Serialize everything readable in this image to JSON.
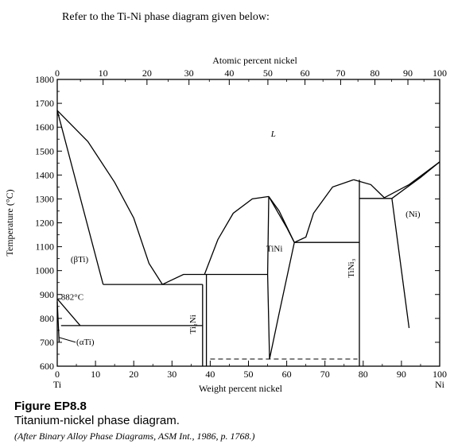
{
  "header": {
    "prompt": "Refer to the Ti-Ni phase diagram given below:"
  },
  "figure": {
    "title": "Figure EP8.8",
    "subtitle": "Titanium-nickel phase diagram.",
    "source": "(After Binary Alloy Phase Diagrams, ASM Int., 1986, p. 1768.)"
  },
  "chart_data": {
    "type": "line",
    "title": "",
    "xlabel": "Weight percent nickel",
    "x2label": "Atomic percent nickel",
    "ylabel": "Temperature (°C)",
    "xlim": [
      0,
      100
    ],
    "ylim": [
      600,
      1800
    ],
    "x_ticks": [
      "0",
      "10",
      "20",
      "30",
      "40",
      "50",
      "60",
      "70",
      "80",
      "90",
      "100"
    ],
    "x2_ticks": [
      "0",
      "10",
      "20",
      "30",
      "40",
      "50",
      "60",
      "70",
      "80",
      "90",
      "100"
    ],
    "y_ticks": [
      "600",
      "700",
      "800",
      "900",
      "1000",
      "1100",
      "1200",
      "1300",
      "1400",
      "1500",
      "1600",
      "1700",
      "1800"
    ],
    "x_end_labels": {
      "left": "Ti",
      "right": "Ni"
    },
    "annotations": {
      "liquid": "L",
      "beta_ti": "(βTi)",
      "alpha_ti": "(αTi)",
      "transformation": "882°C",
      "ti2ni": "Ti₂Ni",
      "tini": "TiNi",
      "tini3": "TiNi₃",
      "ni": "(Ni)"
    },
    "lines": [
      {
        "points": [
          [
            0,
            1670
          ],
          [
            12,
            942
          ]
        ]
      },
      {
        "points": [
          [
            0,
            1670
          ],
          [
            8,
            1540
          ],
          [
            15,
            1370
          ],
          [
            20,
            1220
          ],
          [
            24,
            1030
          ],
          [
            27.5,
            942
          ]
        ]
      },
      {
        "points": [
          [
            12,
            942
          ],
          [
            38,
            942
          ]
        ]
      },
      {
        "points": [
          [
            27.5,
            942
          ],
          [
            33,
            984
          ],
          [
            38.5,
            984
          ]
        ]
      },
      {
        "points": [
          [
            38.5,
            984
          ],
          [
            42,
            1130
          ],
          [
            46,
            1240
          ],
          [
            51,
            1300
          ],
          [
            55.3,
            1310
          ]
        ]
      },
      {
        "points": [
          [
            38.5,
            984
          ],
          [
            55,
            984
          ]
        ]
      },
      {
        "points": [
          [
            55.3,
            1310
          ],
          [
            55,
            984
          ],
          [
            55.5,
            630
          ]
        ]
      },
      {
        "points": [
          [
            55.3,
            1310
          ],
          [
            58,
            1250
          ],
          [
            62,
            1118
          ]
        ]
      },
      {
        "points": [
          [
            55.3,
            1310
          ],
          [
            60,
            1180
          ],
          [
            62,
            1118
          ]
        ]
      },
      {
        "points": [
          [
            55.5,
            630
          ],
          [
            58,
            820
          ],
          [
            62,
            1118
          ]
        ]
      },
      {
        "points": [
          [
            62,
            1118
          ],
          [
            79,
            1118
          ]
        ]
      },
      {
        "points": [
          [
            62,
            1118
          ],
          [
            65,
            1140
          ],
          [
            67,
            1240
          ],
          [
            72,
            1350
          ],
          [
            77.5,
            1380
          ]
        ]
      },
      {
        "points": [
          [
            77.5,
            1380
          ],
          [
            82,
            1360
          ],
          [
            85.5,
            1305
          ]
        ]
      },
      {
        "points": [
          [
            85.5,
            1305
          ],
          [
            92,
            1360
          ],
          [
            100,
            1455
          ]
        ]
      },
      {
        "points": [
          [
            87.5,
            1302
          ],
          [
            95,
            1390
          ],
          [
            100,
            1455
          ]
        ]
      },
      {
        "points": [
          [
            79,
            1302
          ],
          [
            87.5,
            1302
          ]
        ]
      },
      {
        "points": [
          [
            87.5,
            1302
          ],
          [
            92,
            760
          ]
        ]
      },
      {
        "points": [
          [
            0,
            882
          ],
          [
            6,
            770
          ]
        ]
      },
      {
        "points": [
          [
            0,
            870
          ],
          [
            0.5,
            700
          ]
        ]
      },
      {
        "points": [
          [
            1,
            770
          ],
          [
            38,
            770
          ]
        ]
      },
      {
        "points": [
          [
            38,
            942
          ],
          [
            38,
            600
          ]
        ]
      },
      {
        "points": [
          [
            39,
            984
          ],
          [
            39,
            600
          ]
        ]
      },
      {
        "points": [
          [
            79,
            1380
          ],
          [
            79,
            600
          ]
        ]
      }
    ],
    "dashed_lines": [
      {
        "points": [
          [
            40,
            630
          ],
          [
            78.5,
            630
          ]
        ]
      }
    ]
  }
}
